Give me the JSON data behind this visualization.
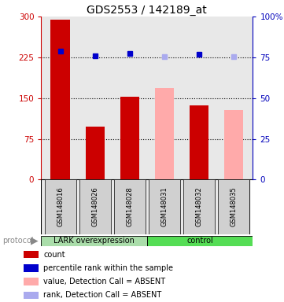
{
  "title": "GDS2553 / 142189_at",
  "samples": [
    "GSM148016",
    "GSM148026",
    "GSM148028",
    "GSM148031",
    "GSM148032",
    "GSM148035"
  ],
  "bar_values": [
    295,
    97,
    153,
    168,
    136,
    128
  ],
  "bar_colors": [
    "#cc0000",
    "#cc0000",
    "#cc0000",
    "#ffaaaa",
    "#cc0000",
    "#ffaaaa"
  ],
  "dot_values_y": [
    237,
    228,
    232,
    227,
    231,
    227
  ],
  "dot_colors": [
    "#0000cc",
    "#0000cc",
    "#0000cc",
    "#aaaaee",
    "#0000cc",
    "#aaaaee"
  ],
  "ylim_left": [
    0,
    300
  ],
  "ylim_right": [
    0,
    100
  ],
  "yticks_left": [
    0,
    75,
    150,
    225,
    300
  ],
  "yticks_right": [
    0,
    25,
    50,
    75,
    100
  ],
  "ytick_labels_left": [
    "0",
    "75",
    "150",
    "225",
    "300"
  ],
  "ytick_labels_right": [
    "0",
    "25",
    "50",
    "75",
    "100%"
  ],
  "hlines": [
    75,
    150,
    225
  ],
  "protocol_labels": [
    "LARK overexpression",
    "control"
  ],
  "protocol_colors": [
    "#aaddaa",
    "#55dd55"
  ],
  "legend_items": [
    {
      "label": "count",
      "color": "#cc0000"
    },
    {
      "label": "percentile rank within the sample",
      "color": "#0000cc"
    },
    {
      "label": "value, Detection Call = ABSENT",
      "color": "#ffaaaa"
    },
    {
      "label": "rank, Detection Call = ABSENT",
      "color": "#aaaaee"
    }
  ],
  "left_axis_color": "#cc0000",
  "right_axis_color": "#0000bb",
  "bar_width": 0.55,
  "chart_bg": "#e8e8e8",
  "fig_width": 3.61,
  "fig_height": 3.84,
  "dpi": 100
}
